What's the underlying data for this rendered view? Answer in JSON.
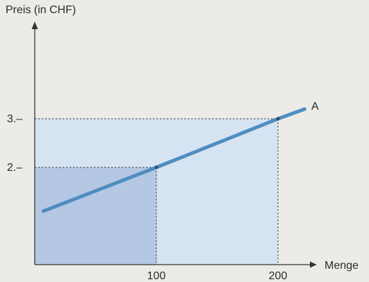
{
  "chart_data": {
    "type": "line",
    "ylabel": "Preis (in CHF)",
    "xlabel": "Menge",
    "xlim": [
      0,
      240
    ],
    "ylim": [
      0,
      4.25
    ],
    "x_ticks": [
      {
        "value": 100,
        "label": "100"
      },
      {
        "value": 200,
        "label": "200"
      }
    ],
    "y_ticks": [
      {
        "value": 2,
        "label": "2.–"
      },
      {
        "value": 3,
        "label": "3.–"
      }
    ],
    "series": [
      {
        "name": "A",
        "x": [
          7,
          100,
          200,
          222
        ],
        "y": [
          1.1,
          2,
          3,
          3.2
        ]
      }
    ],
    "highlight_points": [
      {
        "x": 100,
        "y": 2
      },
      {
        "x": 200,
        "y": 3
      }
    ],
    "shaded_areas": [
      {
        "x": [
          0,
          200
        ],
        "y": [
          0,
          3
        ],
        "color": "#d6e3f3"
      },
      {
        "x": [
          0,
          100
        ],
        "y": [
          0,
          2
        ],
        "color": "#b4c8e4"
      }
    ],
    "colors": {
      "line": "#4f8dbf",
      "axis": "#333333",
      "guide": "#3a3a3a"
    }
  }
}
